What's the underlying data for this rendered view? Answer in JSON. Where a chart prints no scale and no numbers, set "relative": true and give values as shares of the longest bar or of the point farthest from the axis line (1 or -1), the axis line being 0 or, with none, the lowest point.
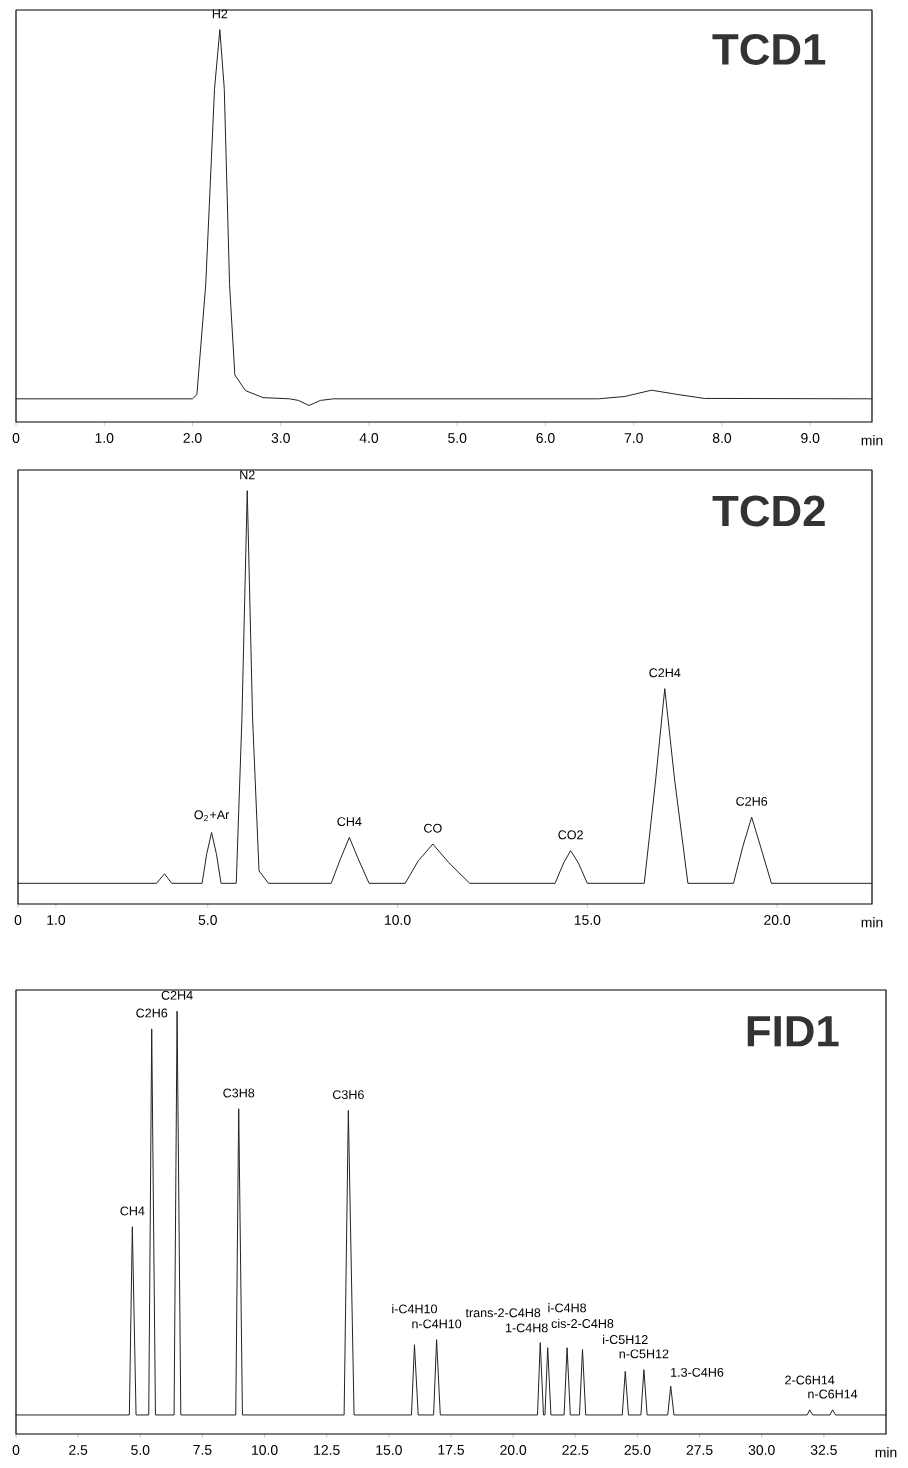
{
  "chart_data": [
    {
      "type": "line",
      "title": "TCD1",
      "xlabel": "min",
      "relative": true,
      "color": "#222222",
      "xlim": [
        0,
        9.7
      ],
      "xticks": [
        {
          "value": 0,
          "label": "0"
        },
        {
          "value": 1,
          "label": "1.0"
        },
        {
          "value": 2,
          "label": "2.0"
        },
        {
          "value": 3,
          "label": "3.0"
        },
        {
          "value": 4,
          "label": "4.0"
        },
        {
          "value": 5,
          "label": "5.0"
        },
        {
          "value": 6,
          "label": "6.0"
        },
        {
          "value": 7,
          "label": "7.0"
        },
        {
          "value": 8,
          "label": "8.0"
        },
        {
          "value": 9,
          "label": "9.0"
        }
      ],
      "x": [
        0,
        2.0,
        2.05,
        2.15,
        2.25,
        2.31,
        2.36,
        2.42,
        2.48,
        2.6,
        2.8,
        3.1,
        3.2,
        3.32,
        3.45,
        3.6,
        6.6,
        6.9,
        7.2,
        7.5,
        7.8,
        9.7
      ],
      "values": [
        0.059,
        0.059,
        0.07,
        0.35,
        0.85,
        1.0,
        0.85,
        0.35,
        0.12,
        0.08,
        0.062,
        0.059,
        0.055,
        0.042,
        0.055,
        0.059,
        0.059,
        0.065,
        0.081,
        0.07,
        0.06,
        0.059
      ],
      "annotations": [
        {
          "text": "H2",
          "x": 2.31,
          "y": 1.0
        }
      ]
    },
    {
      "type": "line",
      "title": "TCD2",
      "xlabel": "min",
      "relative": true,
      "color": "#222222",
      "xlim": [
        0,
        22.5
      ],
      "xticks": [
        {
          "value": 0,
          "label": "0"
        },
        {
          "value": 1,
          "label": "1.0"
        },
        {
          "value": 5,
          "label": "5.0"
        },
        {
          "value": 10,
          "label": "10.0"
        },
        {
          "value": 15,
          "label": "15.0"
        },
        {
          "value": 20,
          "label": "20.0"
        }
      ],
      "x": [
        0,
        3.65,
        3.86,
        4.05,
        4.85,
        4.97,
        5.1,
        5.23,
        5.35,
        5.75,
        5.9,
        6.04,
        6.18,
        6.35,
        6.6,
        8.25,
        8.5,
        8.73,
        8.96,
        9.25,
        10.2,
        10.55,
        10.93,
        11.35,
        11.9,
        14.15,
        14.38,
        14.56,
        14.76,
        15.0,
        16.5,
        16.8,
        17.04,
        17.3,
        17.65,
        18.85,
        19.1,
        19.33,
        19.56,
        19.85,
        22.5
      ],
      "values": [
        0.05,
        0.05,
        0.073,
        0.05,
        0.05,
        0.12,
        0.173,
        0.12,
        0.05,
        0.05,
        0.45,
        1.0,
        0.45,
        0.08,
        0.05,
        0.05,
        0.11,
        0.161,
        0.11,
        0.05,
        0.05,
        0.105,
        0.145,
        0.1,
        0.05,
        0.05,
        0.1,
        0.129,
        0.1,
        0.05,
        0.05,
        0.3,
        0.521,
        0.3,
        0.05,
        0.05,
        0.14,
        0.21,
        0.14,
        0.05,
        0.05
      ],
      "annotations": [
        {
          "text": "O$_{2}$+Ar",
          "x": 5.1,
          "y": 0.173
        },
        {
          "text": "N2",
          "x": 6.04,
          "y": 1.0
        },
        {
          "text": "CH4",
          "x": 8.73,
          "y": 0.161
        },
        {
          "text": "CO",
          "x": 10.93,
          "y": 0.145
        },
        {
          "text": "CO2",
          "x": 14.56,
          "y": 0.129
        },
        {
          "text": "C2H4",
          "x": 17.04,
          "y": 0.521
        },
        {
          "text": "C2H6",
          "x": 19.33,
          "y": 0.21
        }
      ]
    },
    {
      "type": "line",
      "title": "FID1",
      "xlabel": "min",
      "relative": true,
      "color": "#222222",
      "xlim": [
        0,
        35
      ],
      "xticks": [
        {
          "value": 0,
          "label": "0"
        },
        2.5,
        {
          "value": 5,
          "label": "5.0"
        },
        7.5,
        {
          "value": 10,
          "label": "10.0"
        },
        12.5,
        {
          "value": 15,
          "label": "15.0"
        },
        17.5,
        {
          "value": 20,
          "label": "20.0"
        },
        22.5,
        {
          "value": 25,
          "label": "25.0"
        },
        27.5,
        {
          "value": 30,
          "label": "30.0"
        },
        32.5
      ],
      "x": [
        0,
        4.56,
        4.68,
        4.83,
        5.34,
        5.46,
        5.61,
        6.36,
        6.48,
        6.63,
        8.84,
        8.96,
        9.11,
        13.2,
        13.37,
        13.6,
        15.91,
        16.03,
        16.18,
        16.8,
        16.92,
        17.07,
        20.98,
        21.09,
        21.22,
        21.28,
        21.39,
        21.52,
        22.05,
        22.17,
        22.3,
        22.67,
        22.79,
        22.92,
        24.39,
        24.51,
        24.64,
        25.14,
        25.26,
        25.39,
        26.22,
        26.34,
        26.47,
        31.83,
        31.93,
        32.05,
        32.75,
        32.85,
        32.97,
        35
      ],
      "values": [
        0.045,
        0.045,
        0.49,
        0.045,
        0.045,
        0.958,
        0.045,
        0.045,
        1.0,
        0.045,
        0.045,
        0.769,
        0.045,
        0.045,
        0.765,
        0.045,
        0.045,
        0.211,
        0.045,
        0.045,
        0.223,
        0.045,
        0.045,
        0.216,
        0.045,
        0.045,
        0.204,
        0.045,
        0.045,
        0.204,
        0.045,
        0.045,
        0.2,
        0.045,
        0.045,
        0.148,
        0.045,
        0.045,
        0.152,
        0.045,
        0.045,
        0.113,
        0.045,
        0.045,
        0.057,
        0.045,
        0.045,
        0.057,
        0.045,
        0.045
      ],
      "annotations": [
        {
          "text": "CH4",
          "x": 4.68,
          "y": 0.49
        },
        {
          "text": "C2H6",
          "x": 5.46,
          "y": 0.958
        },
        {
          "text": "C2H4",
          "x": 6.48,
          "y": 1.0
        },
        {
          "text": "C3H8",
          "x": 8.96,
          "y": 0.769
        },
        {
          "text": "C3H6",
          "x": 13.37,
          "y": 0.765
        },
        {
          "text": "i-C4H10",
          "x": 16.03,
          "y": 0.211
        },
        {
          "text": "n-C4H10",
          "x": 16.92,
          "y": 0.223
        },
        {
          "text": "trans-2-C4H8",
          "x": 21.09,
          "y": 0.216
        },
        {
          "text": "1-C4H8",
          "x": 21.39,
          "y": 0.204
        },
        {
          "text": "i-C4H8",
          "x": 22.17,
          "y": 0.204
        },
        {
          "text": "cis-2-C4H8",
          "x": 22.79,
          "y": 0.2
        },
        {
          "text": "i-C5H12",
          "x": 24.51,
          "y": 0.148
        },
        {
          "text": "n-C5H12",
          "x": 25.26,
          "y": 0.152
        },
        {
          "text": "1.3-C4H6",
          "x": 26.34,
          "y": 0.113
        },
        {
          "text": "2-C6H14",
          "x": 31.93,
          "y": 0.057
        },
        {
          "text": "n-C6H14",
          "x": 32.85,
          "y": 0.057
        }
      ]
    }
  ]
}
